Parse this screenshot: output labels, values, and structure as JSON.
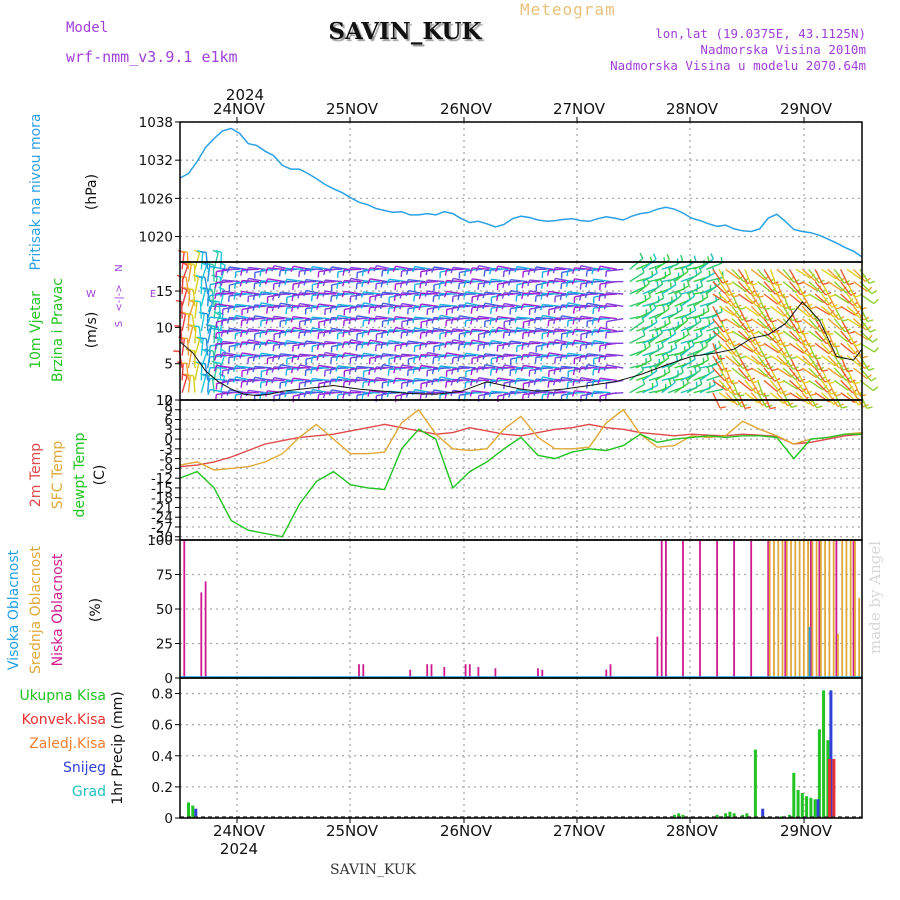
{
  "header": {
    "model_label": "Model",
    "model_name": "wrf-nmm_v3.9.1 e1km",
    "station": "SAVIN_KUK",
    "meteogram": "Meteogram",
    "lonlat": "lon,lat (19.0375E, 43.1125N)",
    "altitude": "Nadmorska Visina 2010m",
    "model_altitude": "Nadmorska Visina u modelu 2070.64m"
  },
  "footer": {
    "station": "SAVIN_KUK",
    "signature": "made by Angel"
  },
  "colors": {
    "pressure": "#2aa0e6",
    "temp2m": "#e04a4a",
    "sfcTemp": "#e0a838",
    "dewpoint": "#22c322",
    "cloudHigh": "#1fa0e6",
    "cloudMid": "#e0a838",
    "cloudLow": "#d01890",
    "precipTotal": "#22c322",
    "precipConv": "#e83030",
    "precipFrozen": "#f08030",
    "precipSnow": "#3040d8",
    "precipHail": "#20c0c0",
    "purple": "#a040d8"
  },
  "chart_data": [
    {
      "type": "line",
      "panel": "pressure",
      "labels": [
        "Pritisak na nivou mora",
        "(hPa)"
      ],
      "ylim": [
        1016,
        1038
      ],
      "yticks": [
        1038,
        1032,
        1026,
        1020
      ],
      "top_axis": {
        "year": "2024",
        "ticks": [
          "24NOV",
          "25NOV",
          "26NOV",
          "27NOV",
          "28NOV",
          "29NOV"
        ]
      },
      "series": [
        {
          "x": [
            0,
            2,
            4,
            6,
            8,
            10,
            12,
            14,
            16,
            18,
            20,
            22,
            24,
            26,
            28,
            30,
            32,
            34,
            36,
            38,
            40,
            42,
            44,
            46,
            48,
            50,
            52,
            54,
            56,
            58,
            60,
            62,
            64,
            66,
            68,
            70,
            72,
            74,
            76,
            78,
            80,
            82,
            84,
            86,
            88,
            90,
            92,
            94,
            96,
            98,
            100,
            102,
            104,
            106,
            108,
            110,
            112,
            114,
            116,
            118,
            120,
            122,
            124,
            126,
            128,
            130,
            132,
            134,
            136,
            138,
            140,
            142,
            144,
            146,
            148,
            150,
            152,
            154,
            156,
            158,
            160
          ],
          "values": [
            1029.2,
            1029.9,
            1031.8,
            1034.0,
            1035.4,
            1036.6,
            1037.0,
            1036.2,
            1034.6,
            1034.3,
            1033.4,
            1032.7,
            1031.2,
            1030.6,
            1030.6,
            1029.9,
            1029.1,
            1028.2,
            1027.5,
            1026.9,
            1026.1,
            1025.4,
            1025.0,
            1024.4,
            1024.1,
            1023.8,
            1023.9,
            1023.4,
            1023.4,
            1023.6,
            1023.4,
            1023.9,
            1023.6,
            1022.8,
            1022.2,
            1022.4,
            1022.0,
            1021.5,
            1021.9,
            1022.8,
            1023.2,
            1023.0,
            1022.6,
            1022.4,
            1022.5,
            1022.7,
            1022.8,
            1022.5,
            1022.4,
            1022.8,
            1023.1,
            1022.9,
            1022.6,
            1023.2,
            1023.6,
            1023.8,
            1024.3,
            1024.6,
            1024.3,
            1023.7,
            1022.9,
            1022.5,
            1022.0,
            1021.6,
            1021.8,
            1021.2,
            1020.9,
            1020.8,
            1021.2,
            1022.9,
            1023.5,
            1022.4,
            1021.1,
            1020.8,
            1020.6,
            1020.2,
            1019.6,
            1019.0,
            1018.3,
            1017.7,
            1016.8
          ]
        }
      ]
    },
    {
      "type": "line",
      "panel": "wind",
      "labels": [
        "10m Vjetar",
        "Brzina i Pravac",
        "(m/s)"
      ],
      "compass": {
        "n": "N",
        "w": "W",
        "e": "E",
        "s": "S"
      },
      "ylim": [
        0,
        19
      ],
      "yticks": [
        15,
        10,
        5,
        0
      ],
      "series": [
        {
          "name": "speed",
          "x": [
            0,
            3,
            6,
            9,
            12,
            15,
            18,
            21,
            24,
            30,
            36,
            42,
            48,
            54,
            60,
            66,
            72,
            76,
            80,
            84,
            90,
            96,
            102,
            108,
            114,
            120,
            126,
            130,
            134,
            138,
            142,
            146,
            150,
            154,
            158,
            160
          ],
          "values": [
            8.0,
            6.5,
            4.0,
            2.5,
            1.5,
            0.8,
            0.6,
            0.8,
            1.2,
            1.6,
            2.0,
            1.5,
            1.2,
            0.9,
            0.8,
            1.2,
            2.5,
            2.0,
            1.5,
            1.2,
            1.5,
            2.0,
            2.5,
            3.5,
            4.8,
            6.0,
            6.5,
            7.0,
            8.5,
            9.0,
            10.5,
            13.5,
            11.0,
            6.0,
            5.5,
            7.0
          ]
        }
      ]
    },
    {
      "type": "line",
      "panel": "temperature",
      "labels": [
        "2m Temp",
        "SFC Temp",
        "dewpt Temp",
        "(C)"
      ],
      "ylim": [
        -31,
        12
      ],
      "yticks": [
        12,
        9,
        6,
        3,
        0,
        -3,
        -6,
        -9,
        -12,
        -15,
        -18,
        -21,
        -24,
        -27,
        -30
      ],
      "series": [
        {
          "name": "2m Temp",
          "x": [
            0,
            4,
            8,
            12,
            16,
            20,
            24,
            28,
            32,
            36,
            40,
            44,
            48,
            52,
            56,
            60,
            64,
            68,
            72,
            76,
            80,
            84,
            88,
            92,
            96,
            100,
            104,
            108,
            112,
            116,
            120,
            124,
            128,
            132,
            136,
            140,
            144,
            148,
            152,
            156,
            160
          ],
          "values": [
            -8.5,
            -8.0,
            -7.0,
            -5.5,
            -3.5,
            -1.5,
            -0.5,
            0.5,
            1.0,
            1.5,
            2.5,
            3.5,
            4.5,
            3.5,
            2.5,
            1.5,
            2.0,
            3.5,
            2.5,
            1.5,
            1.0,
            2.0,
            3.0,
            3.5,
            4.5,
            3.5,
            3.0,
            2.0,
            1.5,
            1.0,
            1.5,
            1.2,
            1.0,
            1.5,
            1.2,
            0.8,
            -1.5,
            -1.0,
            0.0,
            1.0,
            1.5
          ]
        },
        {
          "name": "SFC Temp",
          "x": [
            0,
            4,
            8,
            12,
            16,
            20,
            24,
            28,
            32,
            36,
            40,
            44,
            48,
            52,
            56,
            60,
            64,
            68,
            72,
            76,
            80,
            84,
            88,
            92,
            96,
            100,
            104,
            108,
            112,
            116,
            120,
            124,
            128,
            132,
            136,
            140,
            144,
            148,
            152,
            156,
            160
          ],
          "values": [
            -8.0,
            -7.0,
            -9.5,
            -9.0,
            -8.5,
            -7.0,
            -4.5,
            0.5,
            4.5,
            0.0,
            -4.5,
            -4.5,
            -4.0,
            5.0,
            9.0,
            1.5,
            -3.0,
            -3.5,
            -3.0,
            3.0,
            7.0,
            0.5,
            -3.0,
            -3.0,
            -2.5,
            5.0,
            9.0,
            1.5,
            -2.5,
            -2.0,
            1.0,
            0.5,
            1.0,
            5.5,
            3.0,
            1.0,
            -1.5,
            0.0,
            0.5,
            1.5,
            2.0
          ]
        },
        {
          "name": "dewpt Temp",
          "x": [
            0,
            4,
            8,
            12,
            16,
            20,
            24,
            28,
            32,
            36,
            40,
            44,
            48,
            52,
            56,
            60,
            64,
            68,
            72,
            76,
            80,
            84,
            88,
            92,
            96,
            100,
            104,
            108,
            112,
            116,
            120,
            124,
            128,
            132,
            136,
            140,
            144,
            148,
            152,
            156,
            160
          ],
          "values": [
            -12.0,
            -10.0,
            -15.0,
            -25.0,
            -28.0,
            -29.0,
            -30.0,
            -20.0,
            -13.0,
            -10.0,
            -14.0,
            -15.0,
            -15.5,
            -3.0,
            3.0,
            0.0,
            -15.0,
            -10.0,
            -7.0,
            -3.0,
            0.5,
            -5.0,
            -6.0,
            -4.0,
            -3.0,
            -3.5,
            -2.0,
            1.5,
            -1.0,
            0.0,
            0.5,
            1.0,
            0.5,
            1.0,
            1.0,
            0.5,
            -6.0,
            0.0,
            0.5,
            1.5,
            1.5
          ]
        }
      ]
    },
    {
      "type": "bar",
      "panel": "cloud",
      "labels": [
        "Visoka Oblacnost",
        "Srednja Oblacnost",
        "Niska Oblacnost",
        "(%)"
      ],
      "ylim": [
        0,
        100
      ],
      "yticks": [
        100,
        75,
        50,
        25,
        0
      ],
      "series": [
        {
          "name": "Niska Oblacnost",
          "x": [
            1,
            5,
            6,
            42,
            43,
            54,
            58,
            59,
            62,
            67,
            68,
            70,
            74,
            84,
            85,
            100,
            101,
            112,
            113,
            114,
            118,
            122,
            126,
            130,
            134,
            138,
            142,
            148,
            150,
            154,
            158
          ],
          "values": [
            100,
            62,
            70,
            10,
            10,
            6,
            10,
            10,
            8,
            10,
            10,
            8,
            7,
            7,
            6,
            6,
            10,
            30,
            100,
            100,
            100,
            100,
            100,
            100,
            100,
            100,
            100,
            100,
            100,
            100,
            100
          ]
        },
        {
          "name": "Srednja Oblacnost",
          "x": [
            138,
            139,
            140,
            141,
            142,
            143,
            144,
            145,
            146,
            147,
            148,
            149,
            150,
            151,
            152,
            153,
            154,
            155,
            156,
            157,
            158,
            159
          ],
          "values": [
            100,
            100,
            100,
            100,
            100,
            100,
            100,
            100,
            100,
            100,
            100,
            100,
            100,
            100,
            100,
            100,
            32,
            100,
            100,
            100,
            100,
            58
          ]
        },
        {
          "name": "Visoka Oblacnost",
          "x": [
            147
          ],
          "values": [
            37
          ]
        }
      ]
    },
    {
      "type": "bar",
      "panel": "precipitation",
      "labels": [
        "Ukupna Kisa",
        "Konvek.Kisa",
        "Zaledj.Kisa",
        "Snijeg",
        "Grad",
        "1hr Precip (mm)"
      ],
      "ylim": [
        0,
        0.9
      ],
      "yticks": [
        0.8,
        0.6,
        0.4,
        0.2,
        0
      ],
      "bottom_axis": {
        "year": "2024",
        "ticks": [
          "24NOV",
          "25NOV",
          "26NOV",
          "27NOV",
          "28NOV",
          "29NOV"
        ]
      },
      "series": [
        {
          "name": "Ukupna Kisa",
          "x": [
            2,
            3,
            116,
            117,
            118,
            126,
            128,
            129,
            130,
            132,
            133,
            135,
            141,
            143,
            144,
            145,
            146,
            147,
            148,
            149,
            150,
            151,
            152
          ],
          "values": [
            0.1,
            0.08,
            0.02,
            0.03,
            0.02,
            0.02,
            0.03,
            0.04,
            0.03,
            0.02,
            0.03,
            0.44,
            0.01,
            0.02,
            0.29,
            0.18,
            0.16,
            0.14,
            0.13,
            0.12,
            0.57,
            0.82,
            0.5
          ]
        },
        {
          "name": "Snijeg",
          "x": [
            3,
            136,
            149,
            152
          ],
          "values": [
            0.06,
            0.06,
            0.12,
            0.82
          ]
        },
        {
          "name": "Konvek.Kisa",
          "x": [
            151,
            152
          ],
          "values": [
            0.38,
            0.38
          ]
        }
      ]
    }
  ]
}
